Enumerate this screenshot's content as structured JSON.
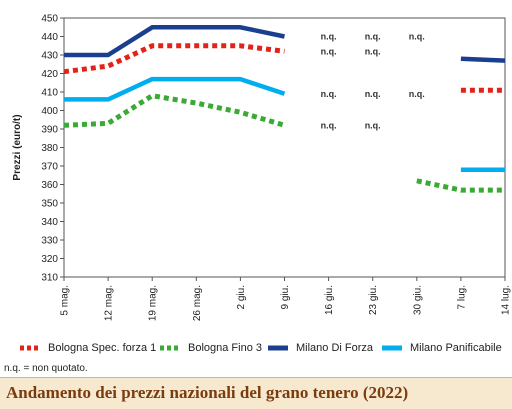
{
  "chart_data": {
    "type": "line",
    "title": "Andamento dei prezzi nazionali del grano tenero (2022)",
    "ylabel": "Prezzi (euro/t)",
    "xlabel": "",
    "ylim": [
      310,
      450
    ],
    "yticks": [
      310,
      320,
      330,
      340,
      350,
      360,
      370,
      380,
      390,
      400,
      410,
      420,
      430,
      440,
      450
    ],
    "categories": [
      "5 mag.",
      "12 mag.",
      "19 mag.",
      "26 mag.",
      "2 giu.",
      "9 giu.",
      "16 giu.",
      "23 giu.",
      "30 giu.",
      "7 lug.",
      "14 lug."
    ],
    "grid": false,
    "legend_position": "bottom",
    "series": [
      {
        "name": "Bologna Spec. forza 1",
        "color": "#e2231a",
        "style": "dotted",
        "values": [
          421,
          424,
          435,
          435,
          435,
          432,
          null,
          null,
          null,
          411,
          411
        ]
      },
      {
        "name": "Bologna Fino 3",
        "color": "#3aaa35",
        "style": "dotted",
        "values": [
          392,
          393,
          408,
          404,
          399,
          392,
          null,
          null,
          362,
          357,
          357
        ]
      },
      {
        "name": "Milano Di Forza",
        "color": "#1b3f8f",
        "style": "solid",
        "values": [
          430,
          430,
          445,
          445,
          445,
          440,
          null,
          null,
          null,
          428,
          427
        ]
      },
      {
        "name": "Milano Panificabile",
        "color": "#00aeef",
        "style": "solid",
        "values": [
          406,
          406,
          417,
          417,
          417,
          409,
          null,
          null,
          null,
          368,
          368
        ]
      }
    ],
    "annotations": [
      {
        "text": "n.q.",
        "x": "16 giu.",
        "y": 440
      },
      {
        "text": "n.q.",
        "x": "23 giu.",
        "y": 440
      },
      {
        "text": "n.q.",
        "x": "30 giu.",
        "y": 440
      },
      {
        "text": "n.q.",
        "x": "16 giu.",
        "y": 432
      },
      {
        "text": "n.q.",
        "x": "23 giu.",
        "y": 432
      },
      {
        "text": "n.q.",
        "x": "16 giu.",
        "y": 409
      },
      {
        "text": "n.q.",
        "x": "23 giu.",
        "y": 409
      },
      {
        "text": "n.q.",
        "x": "30 giu.",
        "y": 409
      },
      {
        "text": "n.q.",
        "x": "16 giu.",
        "y": 392
      },
      {
        "text": "n.q.",
        "x": "23 giu.",
        "y": 392
      }
    ],
    "footnote": "n.q. = non quotato."
  }
}
